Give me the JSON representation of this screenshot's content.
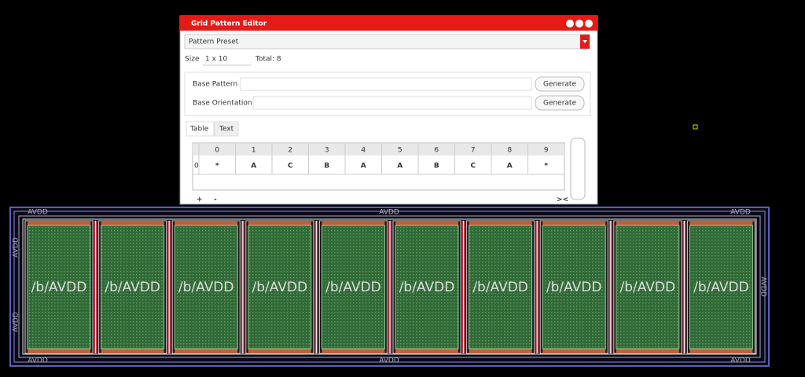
{
  "dialog": {
    "title": "Grid Pattern Editor",
    "preset": "Pattern Preset",
    "size_label": "Size",
    "size_value": "1 x 10",
    "total": "Total: 8",
    "fields": [
      {
        "label": "Base Pattern",
        "button": "Generate"
      },
      {
        "label": "Base Orientation",
        "button": "Generate"
      }
    ],
    "tabs": [
      "Table",
      "Text"
    ],
    "table": {
      "header": [
        "0",
        "1",
        "2",
        "3",
        "4",
        "5",
        "6",
        "7",
        "8",
        "9"
      ],
      "rows": [
        {
          "index": "0",
          "cells": [
            "*",
            "A",
            "C",
            "B",
            "A",
            "A",
            "B",
            "C",
            "A",
            "*"
          ]
        }
      ]
    },
    "add": "+",
    "remove": "-",
    "collapse": "><"
  },
  "layout": {
    "ring_top": [
      "AVDD",
      "AVDD",
      "AVDD"
    ],
    "ring_bottom": [
      "AVDD",
      "AVDD",
      "AVDD"
    ],
    "ring_left": [
      "AVDD",
      "AVDD"
    ],
    "ring_right": [
      "AVDD"
    ],
    "cells": [
      "/b/AVDD",
      "/b/AVDD",
      "/b/AVDD",
      "/b/AVDD",
      "/b/AVDD",
      "/b/AVDD",
      "/b/AVDD",
      "/b/AVDD",
      "/b/AVDD",
      "/b/AVDD"
    ]
  }
}
